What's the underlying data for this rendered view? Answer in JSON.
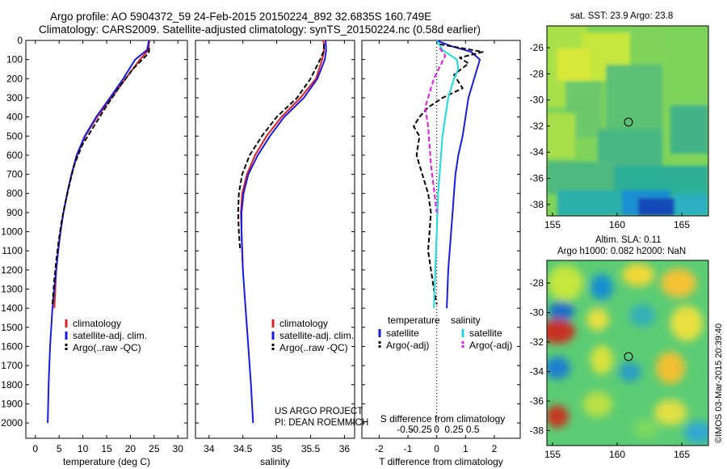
{
  "header": {
    "line1": "Argo profile: AO 5904372_59 24-Feb-2015 20150224_892 32.6835S 160.749E",
    "line2": "Climatology: CARS2009. Satellite-adjusted climatology: synTS_20150224.nc (0.58d earlier)"
  },
  "credit": {
    "project": "US ARGO PROJECT",
    "pi": "PI: DEAN ROEMMICH",
    "imos": "©IMOS 03-Mar-2015 20:39:40"
  },
  "colors": {
    "climatology": "#e02020",
    "satellite": "#1a1ae6",
    "argo": "#000000",
    "sal_satellite": "#19dcdc",
    "sal_argo": "#e619e6"
  },
  "chart_data": [
    {
      "type": "line",
      "id": "temperature",
      "xlabel": "temperature (deg C)",
      "ylabel": "",
      "xlim": [
        -2,
        32
      ],
      "ylim": [
        2080,
        0
      ],
      "xticks": [
        0,
        5,
        10,
        15,
        20,
        25,
        30
      ],
      "yticks": [
        0,
        100,
        200,
        300,
        400,
        500,
        600,
        700,
        800,
        900,
        1000,
        1100,
        1200,
        1300,
        1400,
        1500,
        1600,
        1700,
        1800,
        1900,
        2000
      ],
      "legend": [
        {
          "label": "climatology",
          "color": "#e02020"
        },
        {
          "label": "satellite-adj. clim.",
          "color": "#1a1ae6"
        },
        {
          "label": "Argo(..raw -QC)",
          "color": "#000000",
          "dash": true
        }
      ],
      "series": [
        {
          "name": "climatology",
          "color": "#e02020",
          "x": [
            24,
            23.8,
            22,
            19,
            16,
            13,
            10.5,
            8.8,
            7.6,
            6.7,
            5.9,
            5.3,
            4.8,
            4.4,
            4
          ],
          "y": [
            0,
            50,
            100,
            200,
            300,
            400,
            500,
            600,
            700,
            800,
            900,
            1000,
            1100,
            1200,
            1400
          ]
        },
        {
          "name": "satellite-adj. clim.",
          "color": "#1a1ae6",
          "x": [
            23.9,
            23.5,
            21,
            18.5,
            15.7,
            12.8,
            10.4,
            8.7,
            7.6,
            6.7,
            5.9,
            5.3,
            4.8,
            4.4,
            3.6,
            3.1,
            2.8,
            2.6
          ],
          "y": [
            0,
            50,
            100,
            200,
            300,
            400,
            500,
            600,
            700,
            800,
            900,
            1000,
            1100,
            1200,
            1400,
            1600,
            1800,
            2000
          ]
        },
        {
          "name": "Argo(..raw -QC)",
          "color": "#000000",
          "dash": true,
          "x": [
            24,
            23.9,
            23.3,
            20.5,
            17.5,
            14.8,
            12.3,
            9.8,
            8.2,
            7.2,
            6.3,
            5.5,
            4.9,
            4.4,
            4,
            3.6
          ],
          "y": [
            40,
            60,
            80,
            150,
            250,
            350,
            450,
            550,
            650,
            750,
            850,
            950,
            1050,
            1150,
            1250,
            1380
          ]
        }
      ]
    },
    {
      "type": "line",
      "id": "salinity",
      "xlabel": "salinity",
      "ylabel": "",
      "xlim": [
        33.8,
        36.15
      ],
      "ylim": [
        2080,
        0
      ],
      "xticks": [
        34,
        34.5,
        35,
        35.5,
        36
      ],
      "legend": [
        {
          "label": "climatology",
          "color": "#e02020"
        },
        {
          "label": "satellite-adj. clim.",
          "color": "#1a1ae6"
        },
        {
          "label": "Argo(..raw -QC)",
          "color": "#000000",
          "dash": true
        }
      ],
      "series": [
        {
          "name": "climatology",
          "color": "#e02020",
          "x": [
            35.69,
            35.7,
            35.67,
            35.58,
            35.35,
            35.07,
            34.85,
            34.68,
            34.56,
            34.49,
            34.47,
            34.48,
            34.5
          ],
          "y": [
            0,
            50,
            100,
            200,
            300,
            400,
            500,
            600,
            700,
            800,
            900,
            1000,
            1200
          ]
        },
        {
          "name": "satellite-adj. clim.",
          "color": "#1a1ae6",
          "x": [
            35.72,
            35.73,
            35.71,
            35.6,
            35.4,
            35.11,
            34.9,
            34.72,
            34.58,
            34.51,
            34.48,
            34.48,
            34.5,
            34.54,
            34.58,
            34.62,
            34.65
          ],
          "y": [
            0,
            50,
            100,
            200,
            300,
            400,
            500,
            600,
            700,
            800,
            900,
            1000,
            1200,
            1400,
            1600,
            1800,
            2000
          ]
        },
        {
          "name": "Argo(..raw -QC)",
          "color": "#000000",
          "dash": true,
          "x": [
            35.7,
            35.69,
            35.64,
            35.5,
            35.3,
            35.0,
            34.78,
            34.6,
            34.49,
            34.44,
            34.43,
            34.44,
            34.46
          ],
          "y": [
            20,
            60,
            100,
            200,
            300,
            400,
            500,
            600,
            700,
            800,
            900,
            1000,
            1100
          ]
        }
      ]
    },
    {
      "type": "line",
      "id": "difference",
      "xlabel": "T difference from climatology",
      "xlabel_top": "S difference from climatology",
      "ylabel": "",
      "xlim": [
        -2.6,
        2.9
      ],
      "ylim": [
        2080,
        0
      ],
      "xticks": [
        -2,
        -1,
        0,
        1,
        2
      ],
      "s_ticks": [
        "-0.5",
        "-0.25",
        "0",
        "0.25",
        "0.5"
      ],
      "legend_headers": [
        "temperature",
        "salinity"
      ],
      "legend": [
        {
          "label": "satellite",
          "color": "#1a1ae6",
          "group": "temperature"
        },
        {
          "label": "Argo(-adj)",
          "color": "#000000",
          "dash": true,
          "group": "temperature"
        },
        {
          "label": "satellite",
          "color": "#19dcdc",
          "group": "salinity"
        },
        {
          "label": "Argo(-adj)",
          "color": "#e619e6",
          "dash": true,
          "group": "salinity"
        }
      ],
      "series": [
        {
          "name": "temperature satellite",
          "color": "#1a1ae6",
          "x": [
            0,
            0.5,
            1.2,
            1.5,
            1.4,
            1.1,
            0.9,
            0.75,
            0.65,
            0.6,
            0.55,
            0.5,
            0.45,
            0.4,
            0.35
          ],
          "y": [
            0,
            30,
            60,
            100,
            150,
            300,
            500,
            600,
            700,
            800,
            900,
            1000,
            1100,
            1200,
            1400
          ]
        },
        {
          "name": "temperature Argo(-adj)",
          "color": "#000000",
          "dash": true,
          "x": [
            0.1,
            1.6,
            0.8,
            1.1,
            0.6,
            0.9,
            0.2,
            -0.3,
            -0.6,
            -0.8,
            -0.6,
            -0.7,
            -0.5,
            -0.3,
            -0.2,
            -0.3,
            -0.1,
            0
          ],
          "y": [
            20,
            60,
            90,
            120,
            180,
            250,
            300,
            350,
            400,
            450,
            500,
            600,
            700,
            800,
            900,
            1100,
            1300,
            1380
          ]
        },
        {
          "name": "salinity satellite",
          "color": "#19dcdc",
          "x": [
            0,
            0.2,
            0.7,
            0.75,
            0.6,
            0.4,
            0.3,
            0.2,
            0.15,
            0.1,
            0.05,
            0,
            -0.05,
            -0.1
          ],
          "y": [
            0,
            50,
            100,
            150,
            200,
            300,
            400,
            500,
            600,
            700,
            800,
            1000,
            1200,
            1400
          ]
        },
        {
          "name": "salinity Argo(-adj)",
          "color": "#e619e6",
          "dash": true,
          "x": [
            0.1,
            0.3,
            -0.1,
            -0.4,
            -0.3,
            -0.2,
            0
          ],
          "y": [
            40,
            80,
            200,
            350,
            450,
            650,
            900
          ]
        }
      ]
    }
  ],
  "maps": [
    {
      "id": "sst",
      "title": "sat. SST: 23.9 Argo: 23.8",
      "xticks": [
        "155",
        "160",
        "165"
      ],
      "yticks": [
        "-26",
        "-28",
        "-30",
        "-32",
        "-34",
        "-36",
        "-38"
      ]
    },
    {
      "id": "sla",
      "title1": "Altim. SLA: 0.11",
      "title2": "Argo h1000: 0.082 h2000: NaN",
      "xticks": [
        "155",
        "160",
        "165"
      ],
      "yticks": [
        "-28",
        "-30",
        "-32",
        "-34",
        "-36",
        "-38"
      ]
    }
  ]
}
